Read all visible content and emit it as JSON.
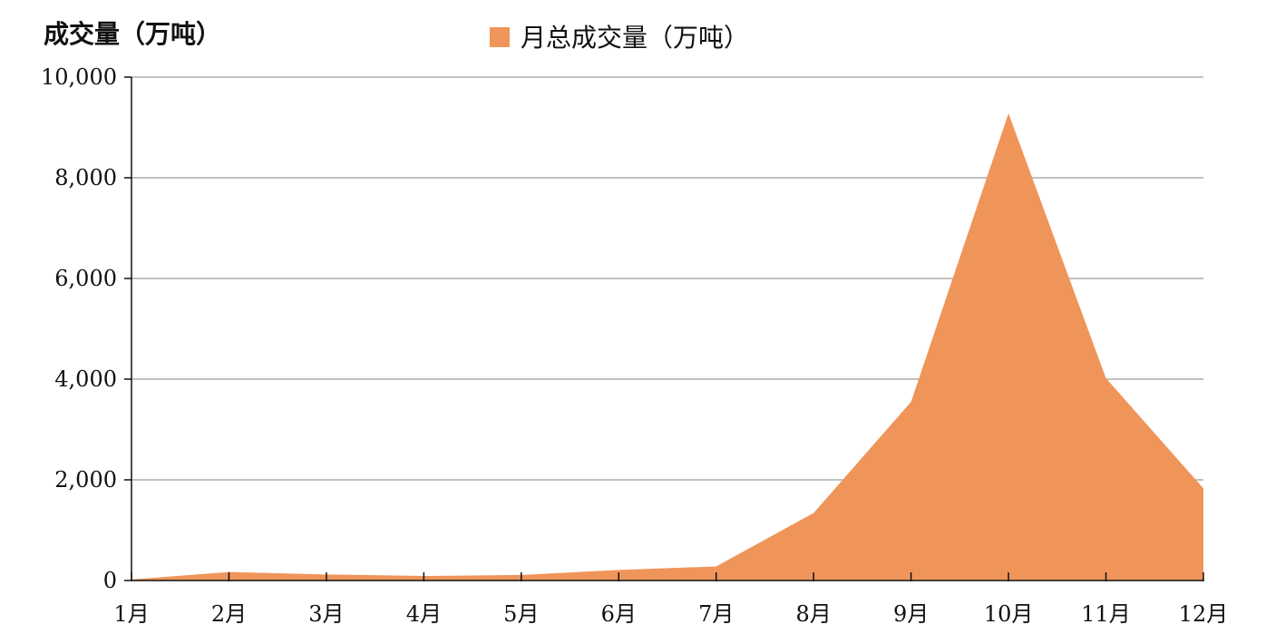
{
  "chart_data": {
    "type": "area",
    "title": "",
    "xlabel": "",
    "ylabel": "成交量（万吨）",
    "categories": [
      "1月",
      "2月",
      "3月",
      "4月",
      "5月",
      "6月",
      "7月",
      "8月",
      "9月",
      "10月",
      "11月",
      "12月"
    ],
    "series": [
      {
        "name": "月总成交量（万吨）",
        "color": "#f0955a",
        "values": [
          20,
          170,
          120,
          90,
          110,
          210,
          280,
          1340,
          3550,
          9280,
          4020,
          1830
        ]
      }
    ],
    "ylim": [
      0,
      10000
    ],
    "yticks": [
      0,
      2000,
      4000,
      6000,
      8000,
      10000
    ],
    "ytick_labels": [
      "0",
      "2,000",
      "4,000",
      "6,000",
      "8,000",
      "10,000"
    ],
    "grid": true,
    "legend_position": "top-center"
  }
}
